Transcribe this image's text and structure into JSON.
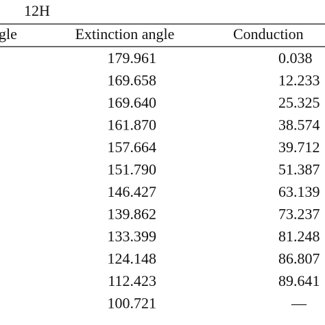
{
  "header": {
    "label": "12H"
  },
  "table": {
    "columns": [
      "gle",
      "Extinction angle",
      "Conduction"
    ],
    "rows": [
      [
        "179.961",
        "0.038"
      ],
      [
        "169.658",
        "12.233"
      ],
      [
        "169.640",
        "25.325"
      ],
      [
        "161.870",
        "38.574"
      ],
      [
        "157.664",
        "39.712"
      ],
      [
        "151.790",
        "51.387"
      ],
      [
        "146.427",
        "63.139"
      ],
      [
        "139.862",
        "73.237"
      ],
      [
        "133.399",
        "81.248"
      ],
      [
        "124.148",
        "86.807"
      ],
      [
        "112.423",
        "89.641"
      ],
      [
        "100.721",
        "—"
      ]
    ]
  }
}
